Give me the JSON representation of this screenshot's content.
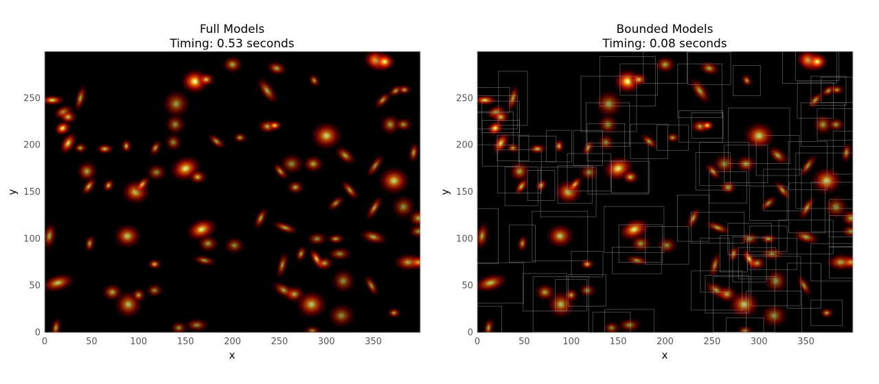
{
  "chart_data": [
    {
      "type": "heatmap",
      "title_line1": "Full Models",
      "title_line2": "Timing: 0.53 seconds",
      "xlabel": "x",
      "ylabel": "y",
      "xlim": [
        0,
        400
      ],
      "ylim": [
        0,
        300
      ],
      "xticks": [
        0,
        50,
        100,
        150,
        200,
        250,
        300,
        350
      ],
      "yticks": [
        0,
        50,
        100,
        150,
        200,
        250
      ],
      "colormap": "hot",
      "background": "#000000",
      "show_bounding_boxes": false
    },
    {
      "type": "heatmap",
      "title_line1": "Bounded Models",
      "title_line2": "Timing: 0.08 seconds",
      "xlabel": "x",
      "ylabel": "y",
      "xlim": [
        0,
        400
      ],
      "ylim": [
        0,
        300
      ],
      "xticks": [
        0,
        50,
        100,
        150,
        200,
        250,
        300,
        350
      ],
      "yticks": [
        0,
        50,
        100,
        150,
        200,
        250
      ],
      "colormap": "hot",
      "background": "#000000",
      "show_bounding_boxes": true,
      "box_color": "#9a9a9a"
    }
  ],
  "sources": [
    {
      "x": 8,
      "y": 248,
      "a": 7,
      "b": 3,
      "theta": 0,
      "amp": 0.8
    },
    {
      "x": 20,
      "y": 235,
      "a": 6,
      "b": 4,
      "theta": 20,
      "amp": 0.7
    },
    {
      "x": 25,
      "y": 230,
      "a": 5,
      "b": 4,
      "theta": 0,
      "amp": 0.7
    },
    {
      "x": 19,
      "y": 218,
      "a": 5,
      "b": 4,
      "theta": 30,
      "amp": 0.9
    },
    {
      "x": 25,
      "y": 202,
      "a": 7,
      "b": 4,
      "theta": 60,
      "amp": 0.8
    },
    {
      "x": 38,
      "y": 197,
      "a": 4,
      "b": 3,
      "theta": 0,
      "amp": 0.6
    },
    {
      "x": 38,
      "y": 250,
      "a": 8,
      "b": 3,
      "theta": 75,
      "amp": 0.6
    },
    {
      "x": 45,
      "y": 172,
      "a": 6,
      "b": 6,
      "theta": 0,
      "amp": 0.6
    },
    {
      "x": 47,
      "y": 156,
      "a": 6,
      "b": 3,
      "theta": 55,
      "amp": 0.7
    },
    {
      "x": 68,
      "y": 157,
      "a": 4,
      "b": 3,
      "theta": 60,
      "amp": 0.7
    },
    {
      "x": 64,
      "y": 196,
      "a": 5,
      "b": 3,
      "theta": 0,
      "amp": 0.7
    },
    {
      "x": 87,
      "y": 199,
      "a": 4,
      "b": 3,
      "theta": 90,
      "amp": 0.7
    },
    {
      "x": 97,
      "y": 150,
      "a": 8,
      "b": 7,
      "theta": 0,
      "amp": 0.75
    },
    {
      "x": 104,
      "y": 158,
      "a": 6,
      "b": 3,
      "theta": 50,
      "amp": 0.7
    },
    {
      "x": 118,
      "y": 197,
      "a": 5,
      "b": 3,
      "theta": 60,
      "amp": 0.6
    },
    {
      "x": 119,
      "y": 171,
      "a": 6,
      "b": 5,
      "theta": 0,
      "amp": 0.5
    },
    {
      "x": 140,
      "y": 244,
      "a": 8,
      "b": 8,
      "theta": 0,
      "amp": 0.55
    },
    {
      "x": 139,
      "y": 222,
      "a": 6,
      "b": 6,
      "theta": 0,
      "amp": 0.5
    },
    {
      "x": 137,
      "y": 203,
      "a": 5,
      "b": 5,
      "theta": 0,
      "amp": 0.5
    },
    {
      "x": 150,
      "y": 175,
      "a": 9,
      "b": 7,
      "theta": 20,
      "amp": 0.85
    },
    {
      "x": 163,
      "y": 166,
      "a": 5,
      "b": 4,
      "theta": 0,
      "amp": 0.7
    },
    {
      "x": 160,
      "y": 268,
      "a": 8,
      "b": 7,
      "theta": 0,
      "amp": 0.95
    },
    {
      "x": 172,
      "y": 270,
      "a": 5,
      "b": 4,
      "theta": 0,
      "amp": 0.7
    },
    {
      "x": 183,
      "y": 204,
      "a": 6,
      "b": 3,
      "theta": -40,
      "amp": 0.6
    },
    {
      "x": 208,
      "y": 208,
      "a": 4,
      "b": 3,
      "theta": 0,
      "amp": 0.6
    },
    {
      "x": 200,
      "y": 286,
      "a": 6,
      "b": 5,
      "theta": 0,
      "amp": 0.6
    },
    {
      "x": 238,
      "y": 220,
      "a": 6,
      "b": 4,
      "theta": 0,
      "amp": 0.7
    },
    {
      "x": 245,
      "y": 221,
      "a": 4,
      "b": 3,
      "theta": 0,
      "amp": 0.8
    },
    {
      "x": 237,
      "y": 258,
      "a": 9,
      "b": 4,
      "theta": -55,
      "amp": 0.6
    },
    {
      "x": 247,
      "y": 282,
      "a": 6,
      "b": 4,
      "theta": -15,
      "amp": 0.6
    },
    {
      "x": 287,
      "y": 269,
      "a": 4,
      "b": 3,
      "theta": -60,
      "amp": 0.6
    },
    {
      "x": 263,
      "y": 180,
      "a": 7,
      "b": 6,
      "theta": 0,
      "amp": 0.5
    },
    {
      "x": 251,
      "y": 172,
      "a": 6,
      "b": 3,
      "theta": -50,
      "amp": 0.6
    },
    {
      "x": 267,
      "y": 155,
      "a": 5,
      "b": 4,
      "theta": 0,
      "amp": 0.6
    },
    {
      "x": 286,
      "y": 180,
      "a": 6,
      "b": 5,
      "theta": 0,
      "amp": 0.6
    },
    {
      "x": 300,
      "y": 210,
      "a": 9,
      "b": 8,
      "theta": 0,
      "amp": 0.75
    },
    {
      "x": 320,
      "y": 189,
      "a": 7,
      "b": 4,
      "theta": -40,
      "amp": 0.6
    },
    {
      "x": 325,
      "y": 152,
      "a": 7,
      "b": 3,
      "theta": -50,
      "amp": 0.6
    },
    {
      "x": 310,
      "y": 138,
      "a": 6,
      "b": 3,
      "theta": 40,
      "amp": 0.55
    },
    {
      "x": 352,
      "y": 178,
      "a": 8,
      "b": 3,
      "theta": 55,
      "amp": 0.55
    },
    {
      "x": 372,
      "y": 162,
      "a": 9,
      "b": 8,
      "theta": 0,
      "amp": 0.75
    },
    {
      "x": 351,
      "y": 133,
      "a": 8,
      "b": 3,
      "theta": 60,
      "amp": 0.6
    },
    {
      "x": 382,
      "y": 134,
      "a": 7,
      "b": 7,
      "theta": 0,
      "amp": 0.5
    },
    {
      "x": 393,
      "y": 192,
      "a": 6,
      "b": 3,
      "theta": 80,
      "amp": 0.6
    },
    {
      "x": 360,
      "y": 248,
      "a": 6,
      "b": 3,
      "theta": 45,
      "amp": 0.6
    },
    {
      "x": 368,
      "y": 222,
      "a": 6,
      "b": 6,
      "theta": 0,
      "amp": 0.55
    },
    {
      "x": 382,
      "y": 222,
      "a": 5,
      "b": 4,
      "theta": 0,
      "amp": 0.55
    },
    {
      "x": 374,
      "y": 258,
      "a": 5,
      "b": 3,
      "theta": 30,
      "amp": 0.6
    },
    {
      "x": 383,
      "y": 259,
      "a": 4,
      "b": 3,
      "theta": 0,
      "amp": 0.6
    },
    {
      "x": 354,
      "y": 290,
      "a": 8,
      "b": 6,
      "theta": -20,
      "amp": 1.0
    },
    {
      "x": 362,
      "y": 289,
      "a": 6,
      "b": 5,
      "theta": 0,
      "amp": 0.9
    },
    {
      "x": 230,
      "y": 122,
      "a": 7,
      "b": 3,
      "theta": 65,
      "amp": 0.6
    },
    {
      "x": 256,
      "y": 112,
      "a": 8,
      "b": 3,
      "theta": -20,
      "amp": 0.6
    },
    {
      "x": 290,
      "y": 100,
      "a": 6,
      "b": 4,
      "theta": 0,
      "amp": 0.5
    },
    {
      "x": 310,
      "y": 100,
      "a": 5,
      "b": 3,
      "theta": 0,
      "amp": 0.6
    },
    {
      "x": 350,
      "y": 102,
      "a": 8,
      "b": 4,
      "theta": -15,
      "amp": 0.6
    },
    {
      "x": 398,
      "y": 122,
      "a": 6,
      "b": 5,
      "theta": 0,
      "amp": 0.6
    },
    {
      "x": 398,
      "y": 108,
      "a": 6,
      "b": 4,
      "theta": 0,
      "amp": 0.5
    },
    {
      "x": 5,
      "y": 103,
      "a": 8,
      "b": 4,
      "theta": 80,
      "amp": 0.6
    },
    {
      "x": 48,
      "y": 95,
      "a": 5,
      "b": 3,
      "theta": 80,
      "amp": 0.6
    },
    {
      "x": 88,
      "y": 103,
      "a": 8,
      "b": 7,
      "theta": 0,
      "amp": 0.7
    },
    {
      "x": 167,
      "y": 110,
      "a": 9,
      "b": 6,
      "theta": 20,
      "amp": 0.85
    },
    {
      "x": 174,
      "y": 95,
      "a": 6,
      "b": 5,
      "theta": 0,
      "amp": 0.55
    },
    {
      "x": 202,
      "y": 93,
      "a": 6,
      "b": 5,
      "theta": 0,
      "amp": 0.5
    },
    {
      "x": 170,
      "y": 77,
      "a": 7,
      "b": 3,
      "theta": -10,
      "amp": 0.55
    },
    {
      "x": 117,
      "y": 73,
      "a": 4,
      "b": 3,
      "theta": 0,
      "amp": 0.7
    },
    {
      "x": 14,
      "y": 53,
      "a": 10,
      "b": 5,
      "theta": 15,
      "amp": 0.7
    },
    {
      "x": 72,
      "y": 43,
      "a": 6,
      "b": 5,
      "theta": 0,
      "amp": 0.6
    },
    {
      "x": 89,
      "y": 30,
      "a": 8,
      "b": 8,
      "theta": 0,
      "amp": 0.65
    },
    {
      "x": 100,
      "y": 40,
      "a": 4,
      "b": 4,
      "theta": 0,
      "amp": 0.6
    },
    {
      "x": 117,
      "y": 45,
      "a": 5,
      "b": 4,
      "theta": 0,
      "amp": 0.5
    },
    {
      "x": 255,
      "y": 45,
      "a": 8,
      "b": 4,
      "theta": -30,
      "amp": 0.6
    },
    {
      "x": 266,
      "y": 41,
      "a": 6,
      "b": 5,
      "theta": 0,
      "amp": 0.6
    },
    {
      "x": 284,
      "y": 30,
      "a": 9,
      "b": 8,
      "theta": 0,
      "amp": 0.7
    },
    {
      "x": 253,
      "y": 72,
      "a": 8,
      "b": 3,
      "theta": 75,
      "amp": 0.55
    },
    {
      "x": 273,
      "y": 84,
      "a": 5,
      "b": 3,
      "theta": 70,
      "amp": 0.6
    },
    {
      "x": 290,
      "y": 78,
      "a": 7,
      "b": 3,
      "theta": -60,
      "amp": 0.85
    },
    {
      "x": 298,
      "y": 74,
      "a": 5,
      "b": 4,
      "theta": 0,
      "amp": 0.6
    },
    {
      "x": 314,
      "y": 84,
      "a": 7,
      "b": 4,
      "theta": 0,
      "amp": 0.5
    },
    {
      "x": 318,
      "y": 55,
      "a": 7,
      "b": 7,
      "theta": 0,
      "amp": 0.5
    },
    {
      "x": 316,
      "y": 18,
      "a": 8,
      "b": 7,
      "theta": 0,
      "amp": 0.5
    },
    {
      "x": 348,
      "y": 50,
      "a": 7,
      "b": 3,
      "theta": -60,
      "amp": 0.55
    },
    {
      "x": 372,
      "y": 21,
      "a": 4,
      "b": 3,
      "theta": 0,
      "amp": 0.6
    },
    {
      "x": 388,
      "y": 75,
      "a": 9,
      "b": 5,
      "theta": 0,
      "amp": 0.7
    },
    {
      "x": 398,
      "y": 75,
      "a": 6,
      "b": 4,
      "theta": 0,
      "amp": 0.6
    },
    {
      "x": 12,
      "y": 5,
      "a": 6,
      "b": 3,
      "theta": 80,
      "amp": 0.6
    },
    {
      "x": 143,
      "y": 5,
      "a": 5,
      "b": 4,
      "theta": 0,
      "amp": 0.5
    },
    {
      "x": 162,
      "y": 8,
      "a": 7,
      "b": 4,
      "theta": 0,
      "amp": 0.5
    },
    {
      "x": 285,
      "y": 2,
      "a": 5,
      "b": 3,
      "theta": 0,
      "amp": 0.5
    }
  ]
}
